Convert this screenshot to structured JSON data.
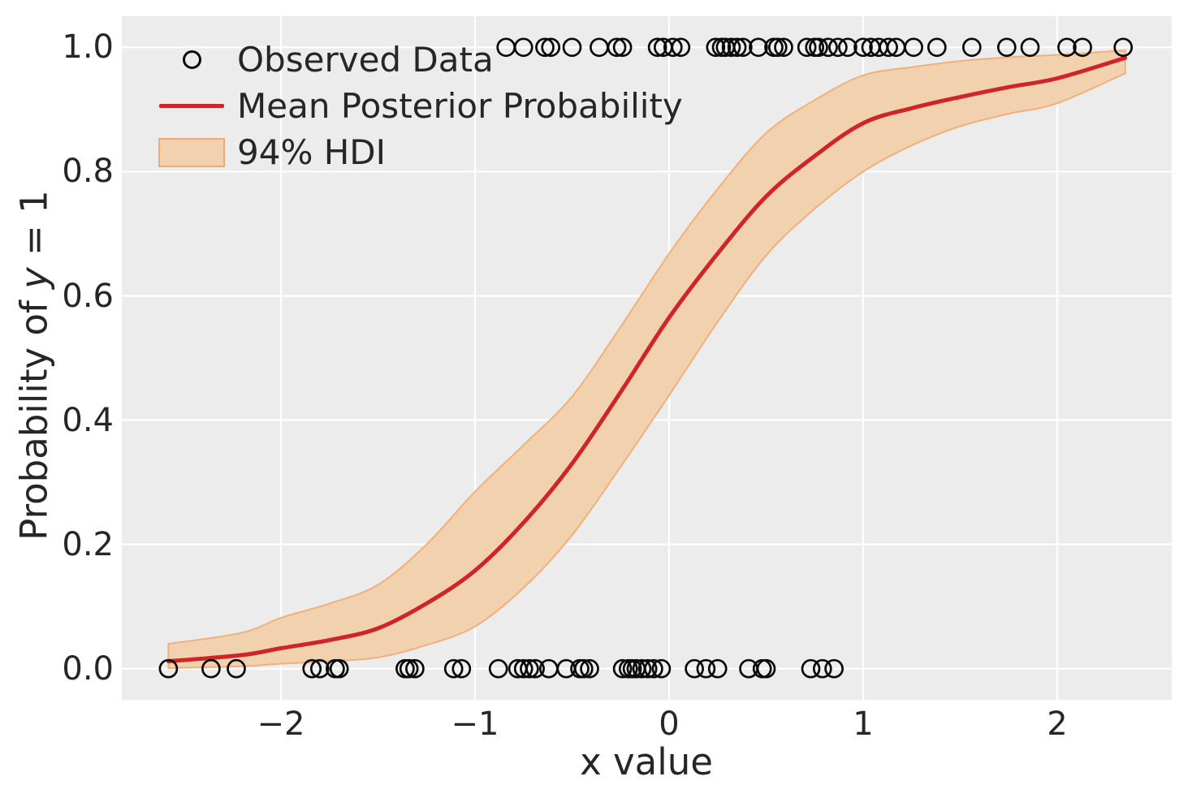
{
  "colors": {
    "plot_bg": "#ececec",
    "grid": "#ffffff",
    "mean_line": "#cf2529",
    "band_fill": "#f2d2ae",
    "band_edge": "#f0ab74",
    "marker": "#0a0a0a",
    "text": "#262626"
  },
  "axes": {
    "xlabel": "x value",
    "ylabel_prefix": "Probability of ",
    "ylabel_var": "y",
    "ylabel_suffix": " = 1",
    "x_tick_labels": [
      "−2",
      "−1",
      "0",
      "1",
      "2"
    ],
    "y_tick_labels": [
      "0.0",
      "0.2",
      "0.4",
      "0.6",
      "0.8",
      "1.0"
    ]
  },
  "legend": {
    "items": [
      {
        "label": "Observed Data",
        "marker": "open-circle"
      },
      {
        "label": "Mean Posterior Probability",
        "marker": "line"
      },
      {
        "label": "94% HDI",
        "marker": "patch"
      }
    ]
  },
  "chart_data": {
    "type": "scatter+line+band",
    "title": "",
    "xlabel": "x value",
    "ylabel": "Probability of y = 1",
    "xlim": [
      -2.82,
      2.59
    ],
    "ylim": [
      -0.05,
      1.05
    ],
    "x_ticks": [
      -2,
      -1,
      0,
      1,
      2
    ],
    "y_ticks": [
      0.0,
      0.2,
      0.4,
      0.6,
      0.8,
      1.0
    ],
    "grid": true,
    "legend_position": "upper left",
    "series": [
      {
        "name": "Observed Data",
        "type": "scatter",
        "marker": "open-circle",
        "color": "#0a0a0a",
        "points_y1_y": 1,
        "points_y1_x": [
          -0.84,
          -0.75,
          -0.64,
          -0.61,
          -0.5,
          -0.36,
          -0.27,
          -0.24,
          -0.06,
          -0.03,
          0.02,
          0.06,
          0.24,
          0.27,
          0.29,
          0.32,
          0.35,
          0.38,
          0.46,
          0.54,
          0.56,
          0.59,
          0.71,
          0.75,
          0.77,
          0.82,
          0.87,
          0.92,
          1.0,
          1.04,
          1.08,
          1.13,
          1.17,
          1.26,
          1.38,
          1.56,
          1.74,
          1.86,
          2.05,
          2.13,
          2.34
        ],
        "points_y0_y": 0,
        "points_y0_x": [
          -2.58,
          -2.36,
          -2.23,
          -1.84,
          -1.8,
          -1.72,
          -1.7,
          -1.36,
          -1.34,
          -1.31,
          -1.11,
          -1.07,
          -0.88,
          -0.78,
          -0.75,
          -0.72,
          -0.69,
          -0.62,
          -0.53,
          -0.46,
          -0.44,
          -0.41,
          -0.24,
          -0.21,
          -0.19,
          -0.17,
          -0.14,
          -0.11,
          -0.08,
          -0.04,
          0.13,
          0.19,
          0.25,
          0.41,
          0.48,
          0.5,
          0.73,
          0.79,
          0.85
        ]
      },
      {
        "name": "Mean Posterior Probability",
        "type": "line",
        "color": "#cf2529",
        "x": [
          -2.58,
          -2.2,
          -2.0,
          -1.75,
          -1.5,
          -1.25,
          -1.0,
          -0.75,
          -0.5,
          -0.25,
          0.0,
          0.25,
          0.5,
          0.75,
          1.0,
          1.25,
          1.5,
          1.75,
          2.0,
          2.35
        ],
        "y": [
          0.012,
          0.022,
          0.033,
          0.046,
          0.065,
          0.105,
          0.158,
          0.235,
          0.33,
          0.445,
          0.565,
          0.668,
          0.76,
          0.825,
          0.878,
          0.902,
          0.92,
          0.936,
          0.95,
          0.983
        ]
      },
      {
        "name": "94% HDI",
        "type": "band",
        "fill": "#f2d2ae",
        "edge": "#f0ab74",
        "x": [
          -2.58,
          -2.2,
          -2.0,
          -1.75,
          -1.5,
          -1.25,
          -1.0,
          -0.75,
          -0.5,
          -0.25,
          0.0,
          0.25,
          0.5,
          0.75,
          1.0,
          1.25,
          1.5,
          1.75,
          2.0,
          2.35
        ],
        "lower": [
          0.001,
          0.004,
          0.008,
          0.012,
          0.018,
          0.038,
          0.068,
          0.13,
          0.215,
          0.325,
          0.44,
          0.558,
          0.665,
          0.74,
          0.8,
          0.842,
          0.873,
          0.893,
          0.91,
          0.958
        ],
        "upper": [
          0.04,
          0.058,
          0.082,
          0.105,
          0.135,
          0.2,
          0.285,
          0.36,
          0.438,
          0.55,
          0.668,
          0.772,
          0.862,
          0.915,
          0.955,
          0.968,
          0.978,
          0.984,
          0.988,
          0.995
        ]
      }
    ]
  }
}
